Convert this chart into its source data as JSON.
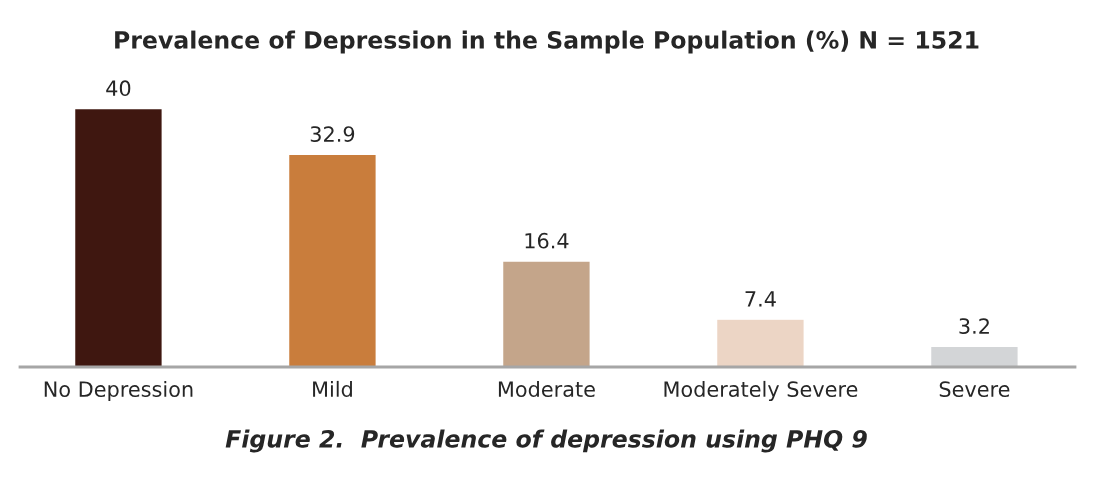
{
  "chart_data": {
    "type": "bar",
    "title": "Prevalence of Depression in the Sample Population (%) N = 1521",
    "categories": [
      "No Depression",
      "Mild",
      "Moderate",
      "Moderately Severe",
      "Severe"
    ],
    "values": [
      40,
      32.9,
      16.4,
      7.4,
      3.2
    ],
    "colors": [
      "#3f1710",
      "#c97d3c",
      "#c4a58a",
      "#ecd5c5",
      "#d3d5d7"
    ],
    "data_labels": true,
    "grid": false,
    "legend": false,
    "annotations": [
      "Figure 2.  Prevalence of depression using PHQ 9"
    ]
  }
}
